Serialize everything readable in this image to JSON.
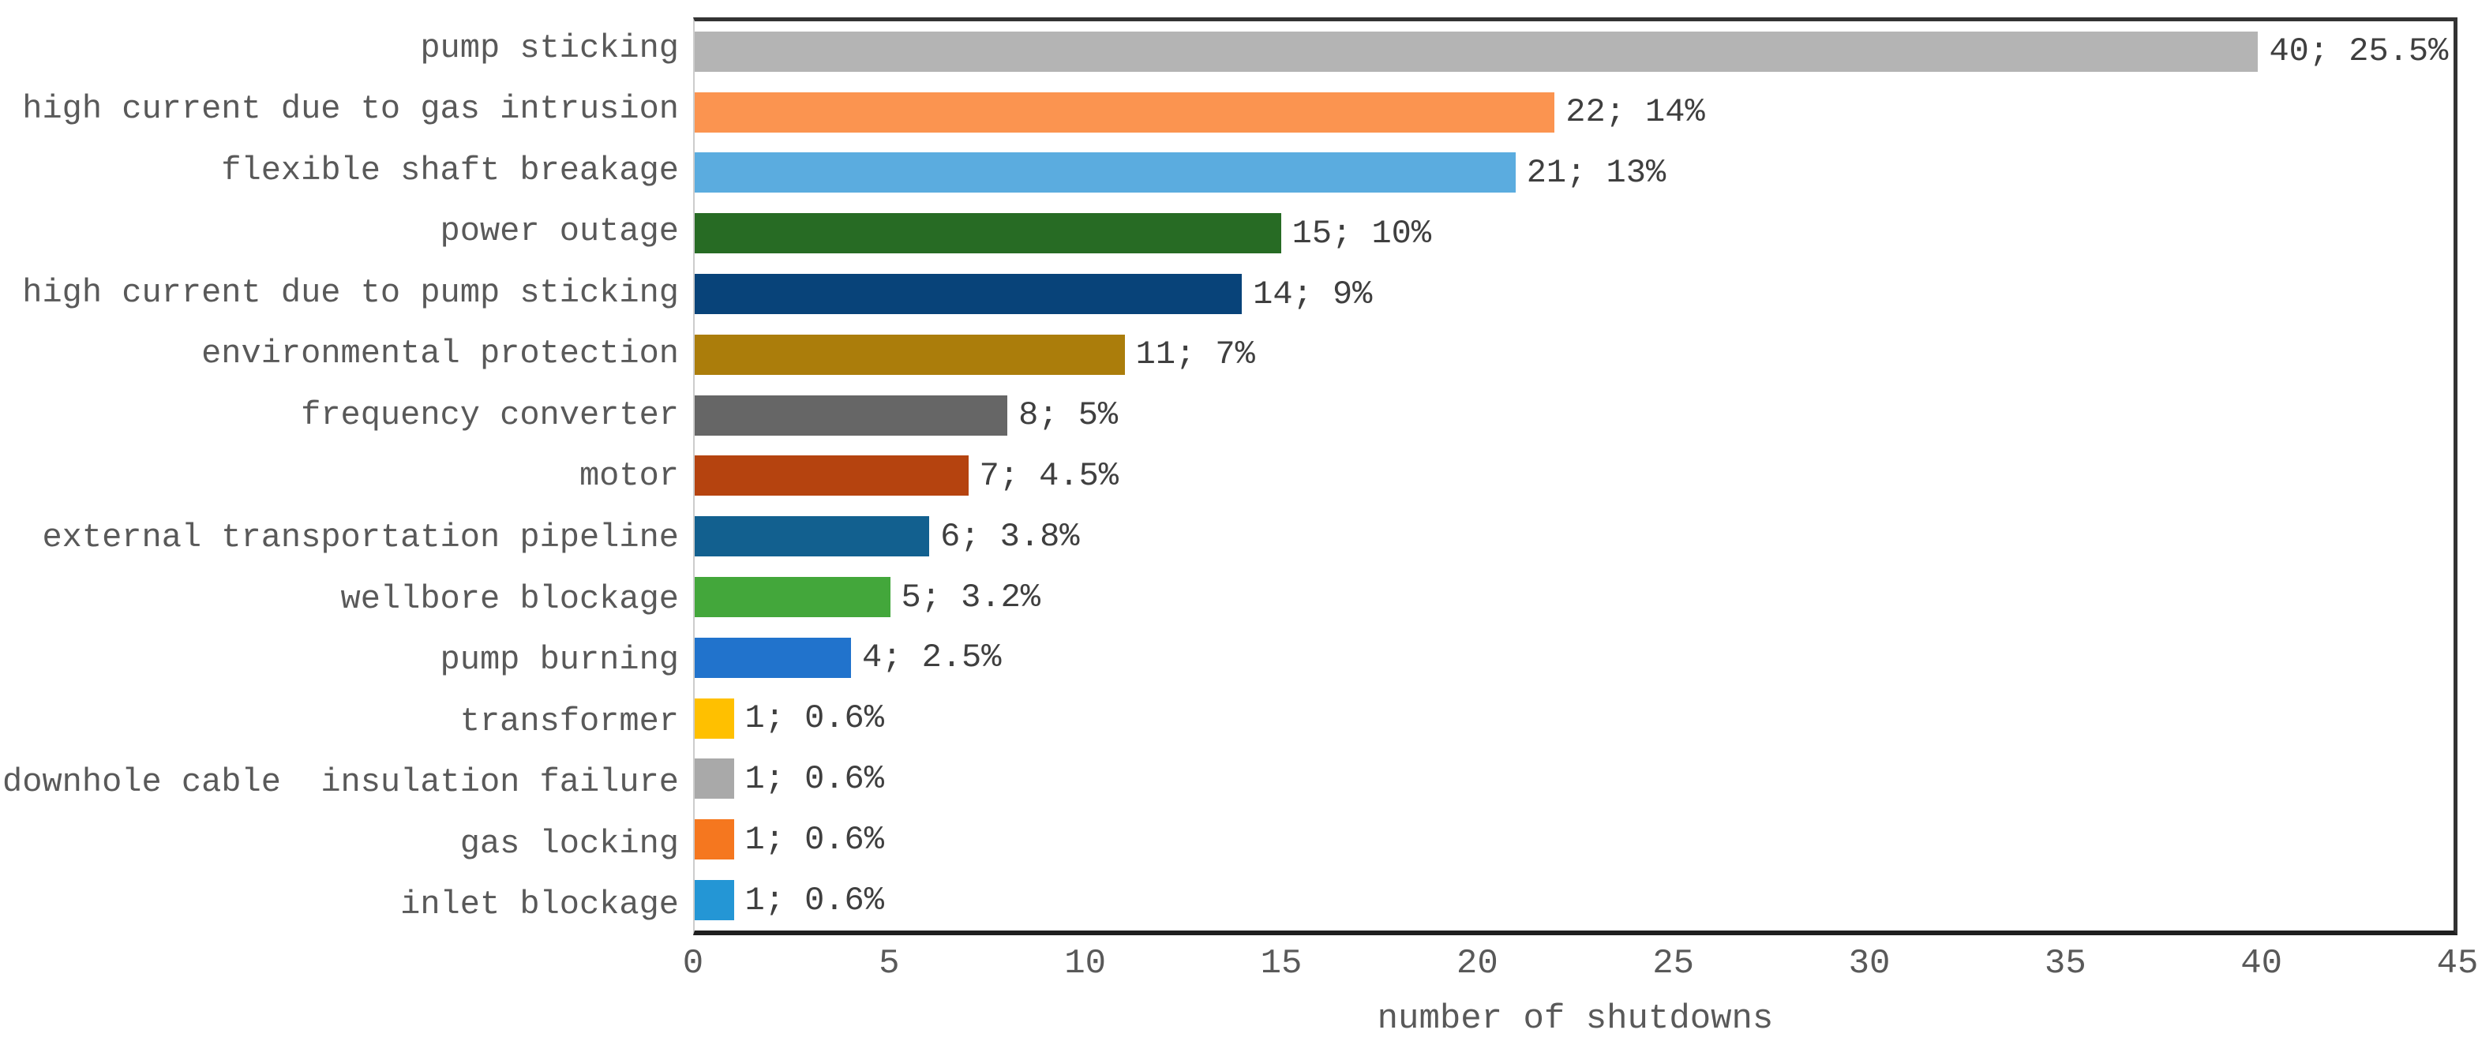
{
  "chart_data": {
    "type": "bar",
    "orientation": "horizontal",
    "title": "",
    "xlabel": "number of shutdowns",
    "ylabel": "",
    "xlim": [
      0,
      45
    ],
    "xticks": [
      0,
      5,
      10,
      15,
      20,
      25,
      30,
      35,
      40,
      45
    ],
    "grid": false,
    "legend": false,
    "background": "#ffffff",
    "categories": [
      "pump sticking",
      "high current due to gas intrusion",
      "flexible shaft breakage",
      "power outage",
      "high current due to pump sticking",
      "environmental protection",
      "frequency converter",
      "motor",
      "external transportation pipeline",
      "wellbore blockage",
      "pump burning",
      "transformer",
      "downhole cable  insulation failure",
      "gas locking",
      "inlet blockage"
    ],
    "values": [
      40,
      22,
      21,
      15,
      14,
      11,
      8,
      7,
      6,
      5,
      4,
      1,
      1,
      1,
      1
    ],
    "data_labels": [
      "40; 25.5%",
      "22; 14%",
      "21; 13%",
      "15; 10%",
      "14; 9%",
      "11; 7%",
      "8; 5%",
      "7; 4.5%",
      "6; 3.8%",
      "5; 3.2%",
      "4; 2.5%",
      "1; 0.6%",
      "1; 0.6%",
      "1; 0.6%",
      "1; 0.6%"
    ],
    "colors": [
      "#b4b4b4",
      "#fb9450",
      "#5bacdf",
      "#276b24",
      "#084379",
      "#ab7d0b",
      "#666666",
      "#b5430f",
      "#12608f",
      "#43a73b",
      "#2173cc",
      "#ffc000",
      "#a9a9a9",
      "#f5771f",
      "#2496d5"
    ],
    "label_color": "#595959",
    "value_label_color": "#3f3f3f",
    "axis_color": "#333333"
  }
}
